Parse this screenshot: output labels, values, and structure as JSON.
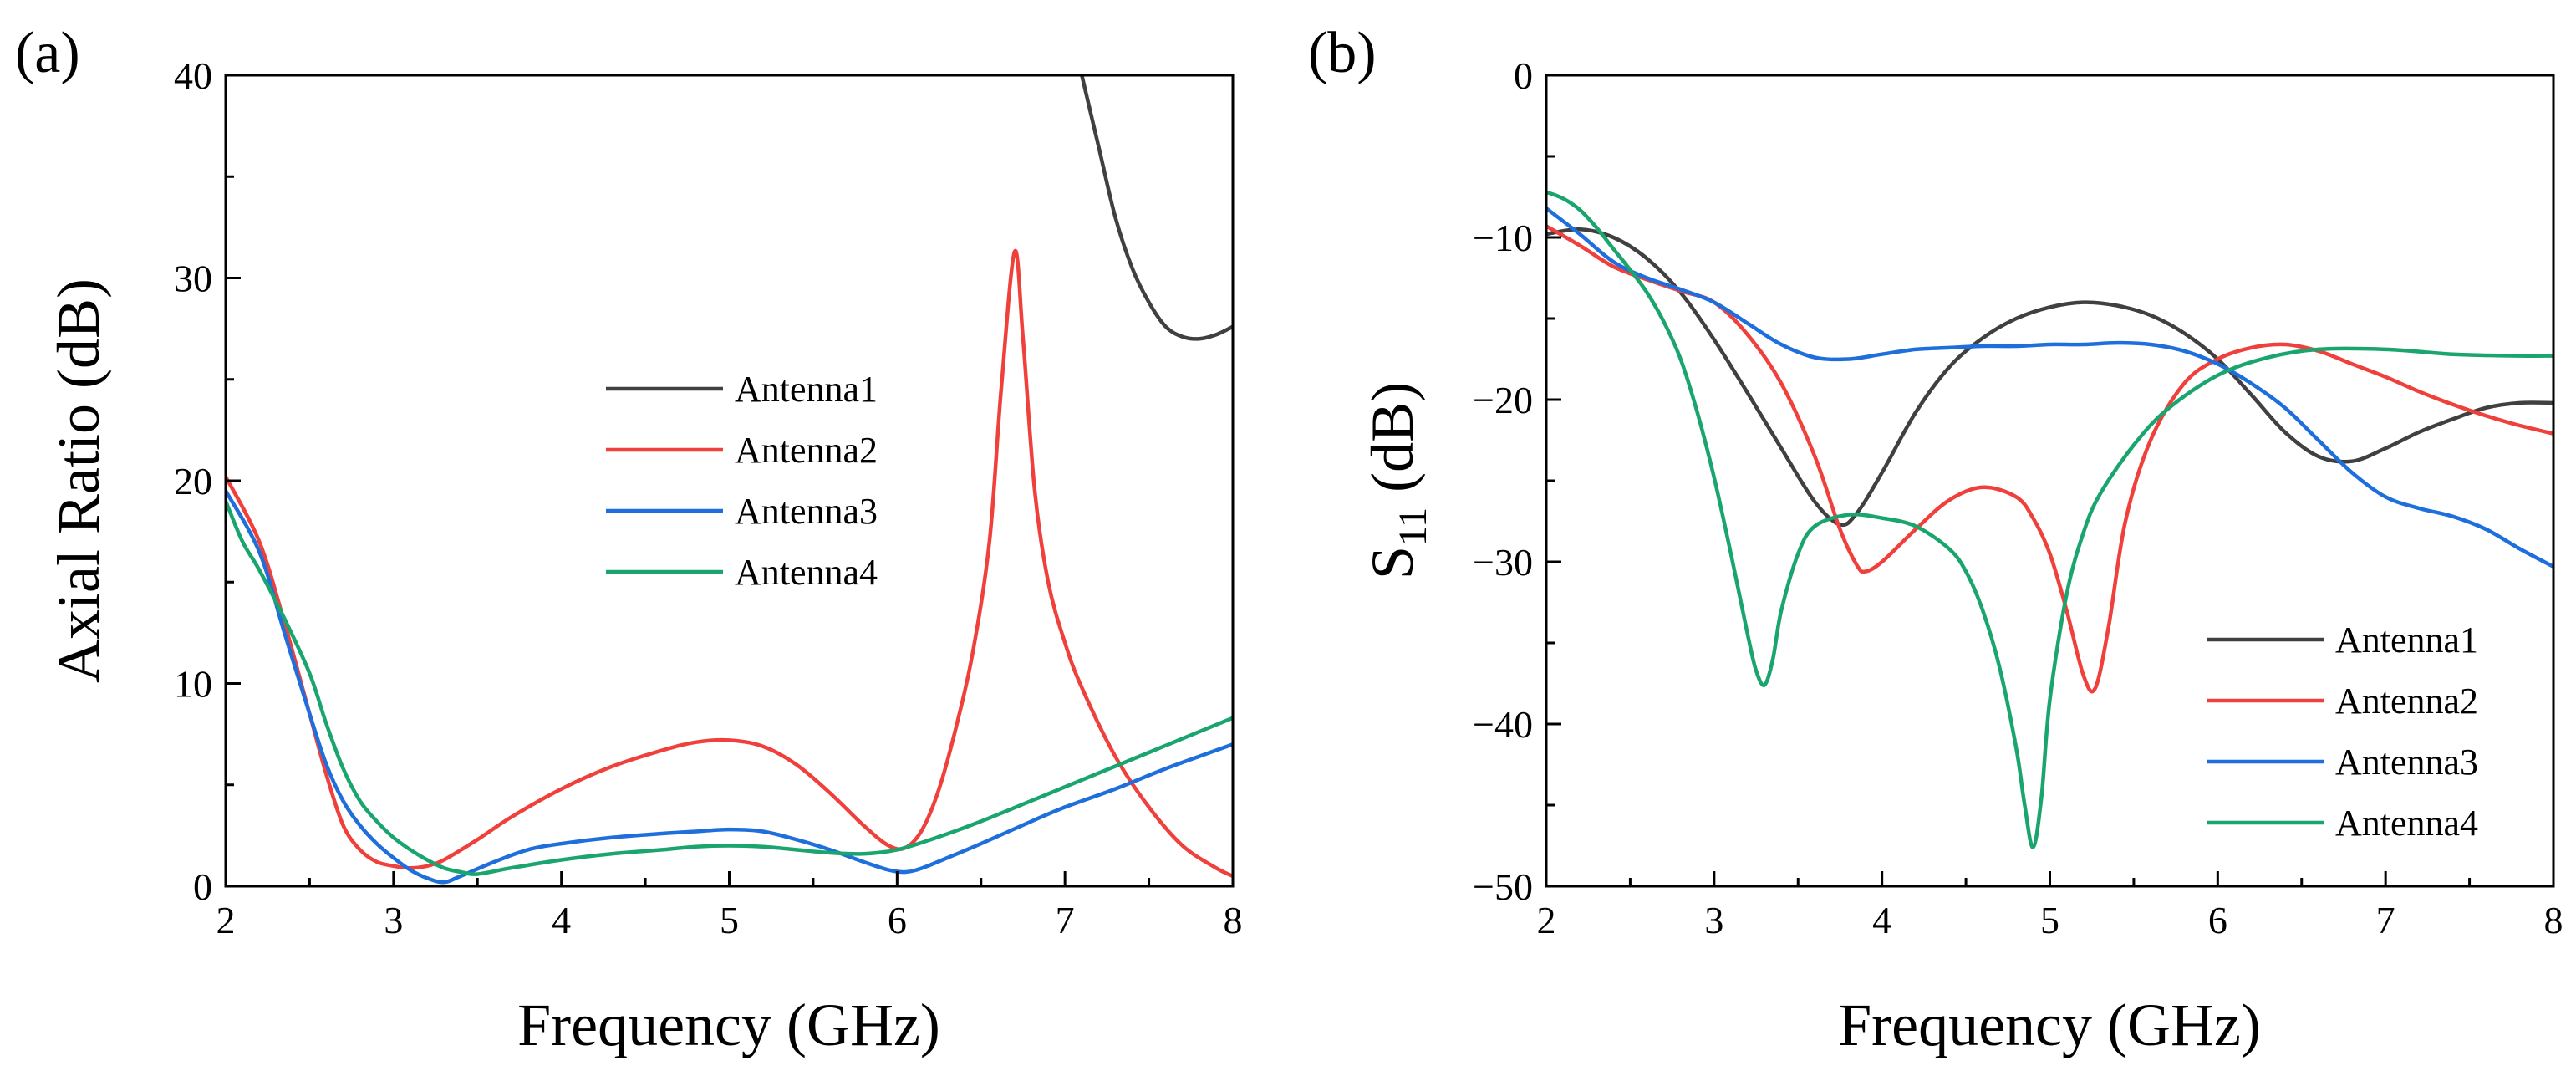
{
  "chart_data": [
    {
      "type": "line",
      "panel_label": "(a)",
      "xlabel": "Frequency (GHz)",
      "ylabel": "Axial Ratio (dB)",
      "xlim": [
        2,
        8
      ],
      "ylim": [
        0,
        40
      ],
      "xticks": [
        2,
        3,
        4,
        5,
        6,
        7,
        8
      ],
      "yticks": [
        0,
        10,
        20,
        30,
        40
      ],
      "legend_position": "center-right",
      "series": [
        {
          "name": "Antenna1",
          "color": "#404040",
          "x": [
            7.1,
            7.2,
            7.3,
            7.4,
            7.5,
            7.6,
            7.7,
            7.8,
            7.9,
            8.0
          ],
          "y": [
            40,
            36.5,
            33,
            30.5,
            28.8,
            27.6,
            27.1,
            27.0,
            27.2,
            27.6
          ]
        },
        {
          "name": "Antenna2",
          "color": "#f0403c",
          "x": [
            2.0,
            2.2,
            2.35,
            2.5,
            2.6,
            2.7,
            2.8,
            2.9,
            3.0,
            3.1,
            3.2,
            3.3,
            3.5,
            3.7,
            4.0,
            4.3,
            4.6,
            4.8,
            5.0,
            5.2,
            5.4,
            5.6,
            5.8,
            5.95,
            6.05,
            6.15,
            6.25,
            6.35,
            6.45,
            6.55,
            6.62,
            6.7,
            6.75,
            6.82,
            6.9,
            7.0,
            7.1,
            7.3,
            7.5,
            7.7,
            7.9,
            8.0
          ],
          "y": [
            20.2,
            17.0,
            13.0,
            8.5,
            5.5,
            3.0,
            1.8,
            1.2,
            1.0,
            0.9,
            1.0,
            1.3,
            2.3,
            3.4,
            4.8,
            5.9,
            6.7,
            7.1,
            7.2,
            6.9,
            6.0,
            4.6,
            3.0,
            2.0,
            1.9,
            2.8,
            4.8,
            7.8,
            11.5,
            17.0,
            24.5,
            31.3,
            27.0,
            19.5,
            15.0,
            12.0,
            9.8,
            6.4,
            3.9,
            2.0,
            0.9,
            0.5
          ]
        },
        {
          "name": "Antenna3",
          "color": "#1e6fdc",
          "x": [
            2.0,
            2.2,
            2.35,
            2.5,
            2.6,
            2.7,
            2.8,
            2.9,
            3.0,
            3.1,
            3.2,
            3.3,
            3.4,
            3.6,
            3.8,
            4.0,
            4.3,
            4.6,
            4.8,
            5.0,
            5.2,
            5.4,
            5.6,
            5.8,
            5.95,
            6.05,
            6.15,
            6.3,
            6.5,
            6.8,
            7.0,
            7.3,
            7.6,
            7.8,
            8.0
          ],
          "y": [
            19.5,
            16.5,
            12.5,
            8.5,
            6.0,
            4.2,
            3.0,
            2.1,
            1.4,
            0.8,
            0.4,
            0.2,
            0.5,
            1.2,
            1.8,
            2.1,
            2.4,
            2.6,
            2.7,
            2.8,
            2.7,
            2.3,
            1.8,
            1.2,
            0.8,
            0.7,
            0.9,
            1.4,
            2.1,
            3.2,
            3.9,
            4.8,
            5.8,
            6.4,
            7.0
          ]
        },
        {
          "name": "Antenna4",
          "color": "#1aa56e",
          "x": [
            2.0,
            2.1,
            2.2,
            2.35,
            2.5,
            2.6,
            2.7,
            2.8,
            2.9,
            3.0,
            3.1,
            3.2,
            3.3,
            3.4,
            3.5,
            3.7,
            4.0,
            4.3,
            4.6,
            4.8,
            5.0,
            5.2,
            5.4,
            5.6,
            5.8,
            6.0,
            6.2,
            6.5,
            7.0,
            7.5,
            8.0
          ],
          "y": [
            19.0,
            17.0,
            15.6,
            13.2,
            10.5,
            8.0,
            5.8,
            4.2,
            3.2,
            2.4,
            1.8,
            1.3,
            0.9,
            0.7,
            0.6,
            0.9,
            1.3,
            1.6,
            1.8,
            1.95,
            2.0,
            1.95,
            1.8,
            1.65,
            1.6,
            1.8,
            2.3,
            3.2,
            4.9,
            6.6,
            8.3
          ]
        }
      ]
    },
    {
      "type": "line",
      "panel_label": "(b)",
      "xlabel": "Frequency (GHz)",
      "ylabel": "S11 (dB)",
      "ylabel_main": "S",
      "ylabel_sub": "11",
      "ylabel_suffix": " (dB)",
      "xlim": [
        2,
        8
      ],
      "ylim": [
        -50,
        0
      ],
      "xticks": [
        2,
        3,
        4,
        5,
        6,
        7,
        8
      ],
      "yticks": [
        0,
        -10,
        -20,
        -30,
        -40,
        -50
      ],
      "legend_position": "bottom-right",
      "series": [
        {
          "name": "Antenna1",
          "color": "#404040",
          "x": [
            2.0,
            2.2,
            2.4,
            2.6,
            2.8,
            3.0,
            3.2,
            3.4,
            3.6,
            3.75,
            3.85,
            4.0,
            4.2,
            4.4,
            4.6,
            4.8,
            5.0,
            5.2,
            5.4,
            5.6,
            5.8,
            6.0,
            6.2,
            6.4,
            6.6,
            6.8,
            7.0,
            7.2,
            7.4,
            7.6,
            7.8,
            8.0
          ],
          "y": [
            -9.8,
            -9.5,
            -10.0,
            -11.3,
            -13.4,
            -16.3,
            -19.6,
            -23.0,
            -26.3,
            -27.7,
            -27.0,
            -24.5,
            -20.8,
            -18.0,
            -16.2,
            -15.0,
            -14.3,
            -14.0,
            -14.2,
            -14.8,
            -15.9,
            -17.5,
            -19.7,
            -22.0,
            -23.5,
            -23.8,
            -23.0,
            -22.0,
            -21.2,
            -20.5,
            -20.2,
            -20.2
          ]
        },
        {
          "name": "Antenna2",
          "color": "#f0403c",
          "x": [
            2.0,
            2.2,
            2.4,
            2.6,
            2.8,
            3.0,
            3.2,
            3.4,
            3.6,
            3.75,
            3.85,
            3.9,
            4.0,
            4.2,
            4.4,
            4.6,
            4.8,
            4.9,
            5.0,
            5.1,
            5.2,
            5.27,
            5.35,
            5.45,
            5.6,
            5.8,
            6.0,
            6.2,
            6.4,
            6.6,
            6.8,
            7.0,
            7.2,
            7.4,
            7.6,
            7.8,
            8.0
          ],
          "y": [
            -9.3,
            -10.5,
            -11.8,
            -12.6,
            -13.3,
            -14.0,
            -16.0,
            -19.0,
            -23.5,
            -28.0,
            -30.2,
            -30.6,
            -30.0,
            -28.0,
            -26.2,
            -25.4,
            -26.0,
            -27.3,
            -29.5,
            -33.0,
            -37.0,
            -37.8,
            -34.0,
            -27.5,
            -22.5,
            -19.0,
            -17.5,
            -16.8,
            -16.6,
            -17.0,
            -17.8,
            -18.6,
            -19.5,
            -20.3,
            -21.0,
            -21.6,
            -22.1
          ]
        },
        {
          "name": "Antenna3",
          "color": "#1e6fdc",
          "x": [
            2.0,
            2.2,
            2.4,
            2.6,
            2.8,
            3.0,
            3.2,
            3.4,
            3.6,
            3.8,
            4.0,
            4.2,
            4.4,
            4.6,
            4.8,
            5.0,
            5.2,
            5.4,
            5.6,
            5.8,
            6.0,
            6.2,
            6.4,
            6.6,
            6.8,
            7.0,
            7.2,
            7.4,
            7.6,
            7.8,
            8.0
          ],
          "y": [
            -8.2,
            -9.8,
            -11.5,
            -12.5,
            -13.2,
            -14.0,
            -15.3,
            -16.6,
            -17.4,
            -17.5,
            -17.2,
            -16.9,
            -16.8,
            -16.7,
            -16.7,
            -16.6,
            -16.6,
            -16.5,
            -16.6,
            -17.0,
            -17.8,
            -19.0,
            -20.5,
            -22.5,
            -24.5,
            -26.0,
            -26.7,
            -27.2,
            -28.0,
            -29.2,
            -30.3
          ]
        },
        {
          "name": "Antenna4",
          "color": "#1aa56e",
          "x": [
            2.0,
            2.1,
            2.2,
            2.3,
            2.4,
            2.5,
            2.6,
            2.7,
            2.8,
            2.9,
            3.0,
            3.1,
            3.2,
            3.25,
            3.3,
            3.35,
            3.4,
            3.5,
            3.6,
            3.8,
            4.0,
            4.2,
            4.4,
            4.5,
            4.6,
            4.7,
            4.8,
            4.85,
            4.9,
            4.95,
            5.0,
            5.1,
            5.2,
            5.3,
            5.5,
            5.7,
            6.0,
            6.3,
            6.6,
            7.0,
            7.4,
            7.8,
            8.0
          ],
          "y": [
            -7.2,
            -7.6,
            -8.3,
            -9.4,
            -10.7,
            -12.0,
            -13.4,
            -15.2,
            -17.5,
            -20.8,
            -24.8,
            -29.5,
            -34.5,
            -36.7,
            -37.6,
            -36.0,
            -33.0,
            -29.5,
            -27.8,
            -27.1,
            -27.3,
            -27.8,
            -29.2,
            -30.6,
            -33.0,
            -36.5,
            -41.5,
            -45.0,
            -47.6,
            -44.5,
            -38.5,
            -32.0,
            -28.2,
            -25.8,
            -22.8,
            -20.6,
            -18.5,
            -17.4,
            -16.9,
            -16.9,
            -17.2,
            -17.3,
            -17.3
          ]
        }
      ]
    }
  ]
}
